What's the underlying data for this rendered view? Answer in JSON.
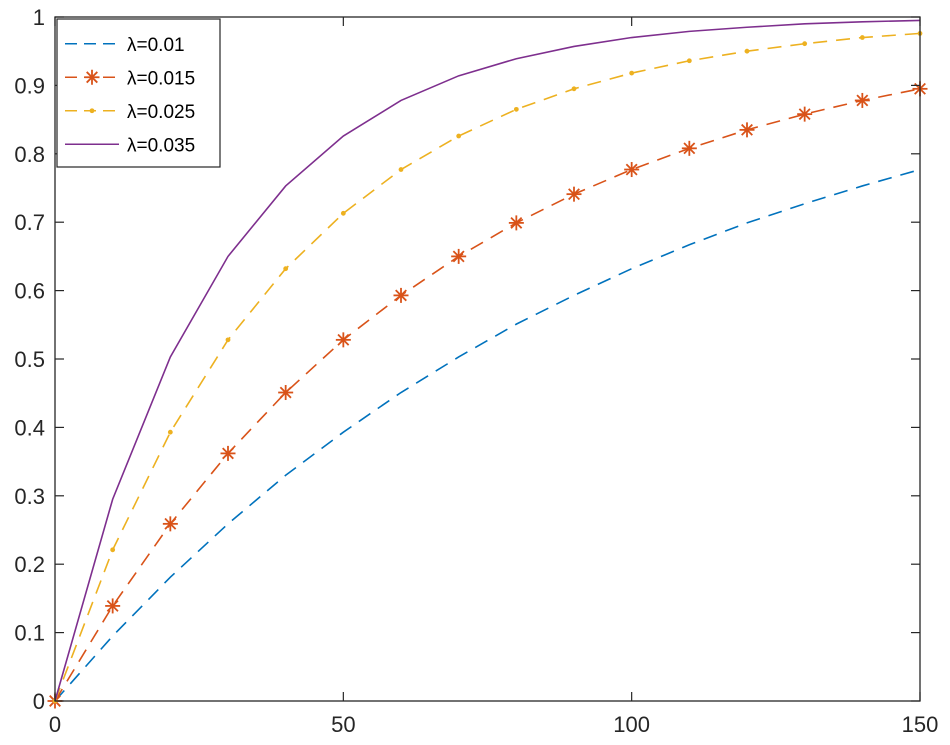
{
  "chart_data": {
    "type": "line",
    "title": "",
    "xlabel": "",
    "ylabel": "",
    "xlim": [
      0,
      150
    ],
    "ylim": [
      0,
      1
    ],
    "x_ticks": [
      "0",
      "50",
      "100",
      "150"
    ],
    "y_ticks": [
      "0",
      "0.1",
      "0.2",
      "0.3",
      "0.4",
      "0.5",
      "0.6",
      "0.7",
      "0.8",
      "0.9",
      "1"
    ],
    "grid": false,
    "legend_position": "top-left",
    "x": [
      0,
      10,
      20,
      30,
      40,
      50,
      60,
      70,
      80,
      90,
      100,
      110,
      120,
      130,
      140,
      150
    ],
    "series": [
      {
        "name": "λ=0.01",
        "color": "#0072BD",
        "line_style": "dashed",
        "marker": "none",
        "values": [
          0,
          0.095,
          0.181,
          0.259,
          0.33,
          0.393,
          0.451,
          0.503,
          0.551,
          0.593,
          0.632,
          0.667,
          0.699,
          0.727,
          0.753,
          0.777
        ]
      },
      {
        "name": "λ=0.015",
        "color": "#D95319",
        "line_style": "dashed",
        "marker": "asterisk",
        "values": [
          0,
          0.139,
          0.259,
          0.362,
          0.451,
          0.528,
          0.593,
          0.65,
          0.699,
          0.741,
          0.777,
          0.808,
          0.835,
          0.858,
          0.878,
          0.895
        ]
      },
      {
        "name": "λ=0.025",
        "color": "#EDB120",
        "line_style": "dashed",
        "marker": "dot",
        "values": [
          0,
          0.221,
          0.393,
          0.528,
          0.632,
          0.713,
          0.777,
          0.826,
          0.865,
          0.895,
          0.918,
          0.936,
          0.95,
          0.961,
          0.97,
          0.976
        ]
      },
      {
        "name": "λ=0.035",
        "color": "#7E2F8E",
        "line_style": "solid",
        "marker": "none",
        "values": [
          0,
          0.295,
          0.503,
          0.65,
          0.753,
          0.826,
          0.878,
          0.914,
          0.939,
          0.957,
          0.97,
          0.979,
          0.985,
          0.99,
          0.993,
          0.995
        ]
      }
    ]
  }
}
